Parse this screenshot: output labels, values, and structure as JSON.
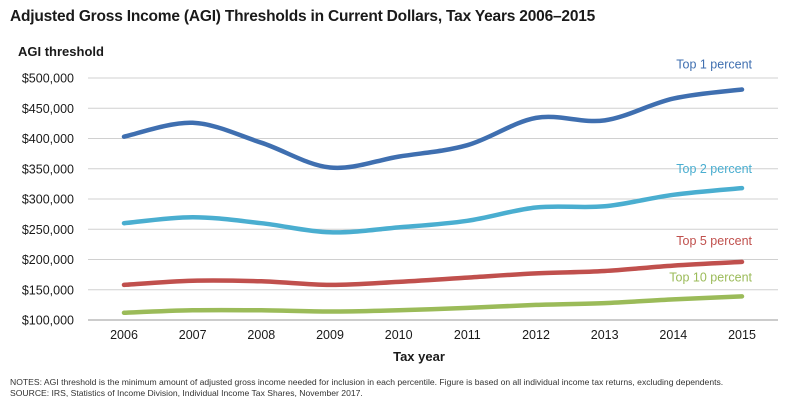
{
  "chart_data": {
    "type": "line",
    "title": "Adjusted Gross Income (AGI) Thresholds in Current Dollars, Tax Years 2006–2015",
    "xlabel": "Tax year",
    "ylabel": "AGI threshold",
    "categories": [
      "2006",
      "2007",
      "2008",
      "2009",
      "2010",
      "2011",
      "2012",
      "2013",
      "2014",
      "2015"
    ],
    "yticks": [
      "$100,000",
      "$150,000",
      "$200,000",
      "$250,000",
      "$300,000",
      "$350,000",
      "$400,000",
      "$450,000",
      "$500,000"
    ],
    "ylim": [
      100000,
      500000
    ],
    "grid": true,
    "series": [
      {
        "name": "Top 1 percent",
        "color": "#3f6fb0",
        "values": [
          403000,
          426000,
          393000,
          352000,
          370000,
          389000,
          434000,
          430000,
          466000,
          481000
        ]
      },
      {
        "name": "Top 2 percent",
        "color": "#4aaed0",
        "values": [
          260000,
          270000,
          260000,
          245000,
          253000,
          264000,
          286000,
          288000,
          307000,
          318000
        ]
      },
      {
        "name": "Top 5 percent",
        "color": "#c0504d",
        "values": [
          158000,
          165000,
          164000,
          158000,
          163000,
          170000,
          177000,
          181000,
          190000,
          196000
        ]
      },
      {
        "name": "Top 10 percent",
        "color": "#9bbb59",
        "values": [
          112000,
          116000,
          116000,
          114000,
          116000,
          120000,
          125000,
          128000,
          134000,
          139000
        ]
      }
    ]
  },
  "notes": {
    "line1": "NOTES: AGI threshold is the minimum amount of adjusted gross income needed for inclusion in each percentile. Figure is based on all individual income tax returns, excluding dependents.",
    "line2": "SOURCE: IRS, Statistics of Income Division, Individual Income Tax Shares, November 2017."
  }
}
